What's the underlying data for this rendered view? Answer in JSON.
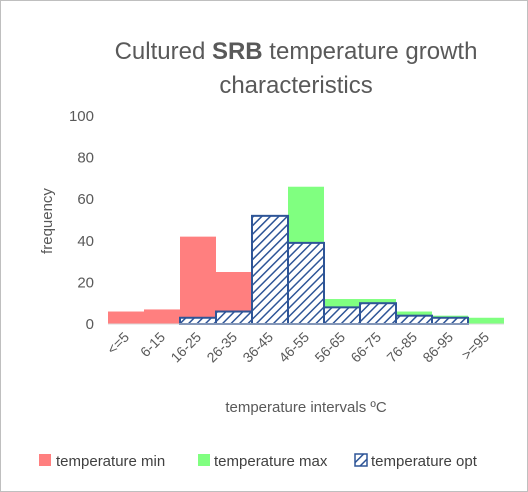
{
  "chart_data": {
    "type": "bar",
    "title_prefix": "Cultured ",
    "title_bold": "SRB",
    "title_line1_suffix": " temperature growth",
    "title_line2": "characteristics",
    "xlabel": "temperature intervals ºC",
    "ylabel": "frequency",
    "ylim": [
      0,
      100
    ],
    "yticks": [
      0,
      20,
      40,
      60,
      80,
      100
    ],
    "grid": false,
    "legend_position": "bottom",
    "categories": [
      "<=5",
      "6-15",
      "16-25",
      "26-35",
      "36-45",
      "46-55",
      "56-65",
      "66-75",
      "76-85",
      "86-95",
      ">=95"
    ],
    "series": [
      {
        "name": "temperature  min",
        "color": "#ff7f7f",
        "style": "solid",
        "values": [
          6,
          7,
          42,
          25,
          30,
          20,
          3,
          2,
          0,
          0,
          0
        ]
      },
      {
        "name": "temperature max",
        "color": "#80ff80",
        "style": "solid",
        "values": [
          0,
          0,
          0,
          0,
          0,
          66,
          12,
          12,
          6,
          4,
          3
        ]
      },
      {
        "name": "temperature opt",
        "color": "#2e5597",
        "style": "hatched",
        "values": [
          0,
          0,
          3,
          6,
          52,
          39,
          8,
          10,
          4,
          3,
          0
        ]
      }
    ]
  }
}
